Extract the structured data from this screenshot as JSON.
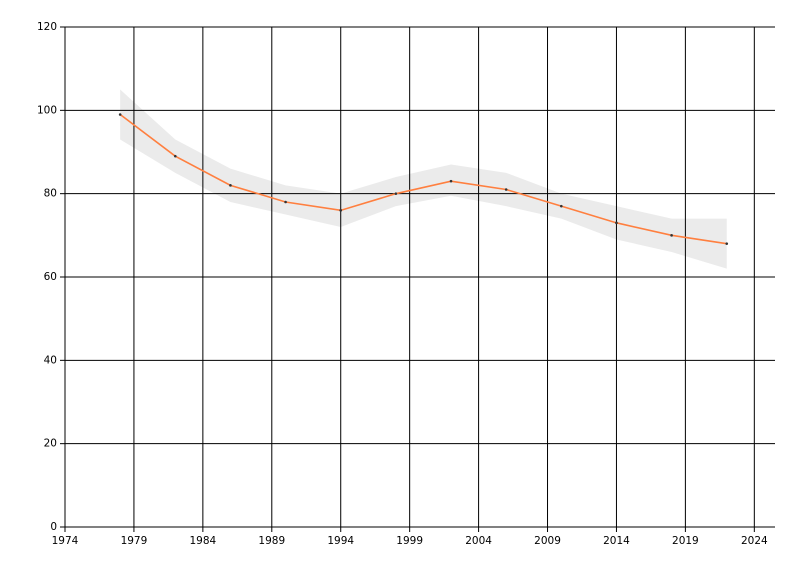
{
  "chart_data": {
    "type": "line",
    "x": [
      1978,
      1982,
      1986,
      1990,
      1994,
      1998,
      2002,
      2006,
      2010,
      2014,
      2018,
      2022
    ],
    "series": [
      {
        "color": "#ff7f3f",
        "values": [
          99,
          89,
          82,
          78,
          76,
          80,
          83,
          81,
          77,
          73,
          70,
          68
        ]
      }
    ],
    "band": {
      "color": "#ebebeb",
      "upper": [
        105,
        93,
        86,
        82,
        80,
        84,
        87,
        85,
        80,
        77,
        74,
        74
      ],
      "lower": [
        93,
        85,
        78,
        75,
        72,
        77,
        79.5,
        77,
        74,
        69,
        66,
        62
      ]
    },
    "xlim": [
      1974,
      2025.5
    ],
    "xticks": [
      1974,
      1979,
      1984,
      1989,
      1994,
      1999,
      2004,
      2009,
      2014,
      2019,
      2024
    ],
    "ylim": [
      0,
      120
    ],
    "yticks": [
      0,
      20,
      40,
      60,
      80,
      100,
      120
    ],
    "grid": true,
    "marker_color": "#333333"
  }
}
